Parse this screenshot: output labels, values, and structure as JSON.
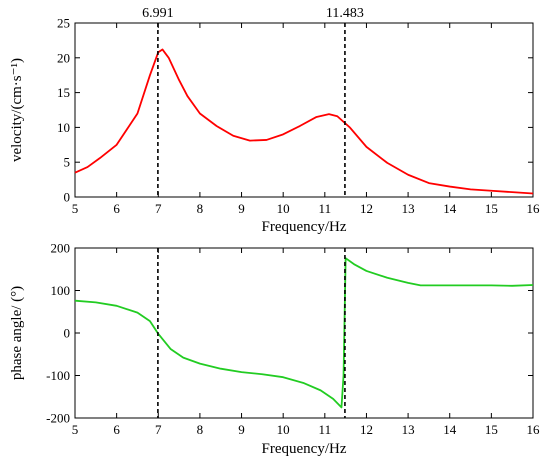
{
  "chart_data": [
    {
      "type": "line",
      "xlabel": "Frequency/Hz",
      "ylabel": "velocity/(cm·s⁻¹)",
      "xlim": [
        5,
        16
      ],
      "ylim": [
        0,
        25
      ],
      "xticks": [
        5,
        6,
        7,
        8,
        9,
        10,
        11,
        12,
        13,
        14,
        15,
        16
      ],
      "yticks": [
        0,
        5,
        10,
        15,
        20,
        25
      ],
      "grid": false,
      "marker_lines": [
        {
          "x": 6.991,
          "label": "6.991"
        },
        {
          "x": 11.483,
          "label": "11.483"
        }
      ],
      "series": [
        {
          "color": "#ff0000",
          "x": [
            5.0,
            5.3,
            5.6,
            6.0,
            6.5,
            6.8,
            7.0,
            7.1,
            7.25,
            7.5,
            7.7,
            8.0,
            8.4,
            8.8,
            9.2,
            9.6,
            10.0,
            10.4,
            10.8,
            11.1,
            11.3,
            11.6,
            12.0,
            12.5,
            13.0,
            13.5,
            14.0,
            14.5,
            15.0,
            15.5,
            16.0
          ],
          "y": [
            3.5,
            4.3,
            5.6,
            7.5,
            12.0,
            17.5,
            20.8,
            21.2,
            20.0,
            16.8,
            14.5,
            12.0,
            10.2,
            8.8,
            8.1,
            8.2,
            9.0,
            10.2,
            11.5,
            11.9,
            11.6,
            10.0,
            7.2,
            4.9,
            3.2,
            2.0,
            1.5,
            1.1,
            0.9,
            0.7,
            0.5
          ]
        }
      ]
    },
    {
      "type": "line",
      "xlabel": "Frequency/Hz",
      "ylabel": "phase angle/ (°)",
      "xlim": [
        5,
        16
      ],
      "ylim": [
        -200,
        200
      ],
      "xticks": [
        5,
        6,
        7,
        8,
        9,
        10,
        11,
        12,
        13,
        14,
        15,
        16
      ],
      "yticks": [
        -200,
        -100,
        0,
        100,
        200
      ],
      "grid": false,
      "marker_lines": [
        {
          "x": 6.991
        },
        {
          "x": 11.483
        }
      ],
      "series": [
        {
          "color": "#22cc22",
          "x": [
            5.0,
            5.5,
            6.0,
            6.5,
            6.8,
            7.0,
            7.3,
            7.6,
            8.0,
            8.5,
            9.0,
            9.5,
            10.0,
            10.5,
            10.9,
            11.2,
            11.4,
            11.45,
            11.5,
            11.7,
            12.0,
            12.5,
            13.0,
            13.3,
            14.0,
            15.0,
            15.5,
            16.0
          ],
          "y": [
            76,
            72,
            64,
            48,
            28,
            -2,
            -38,
            -58,
            -72,
            -84,
            -92,
            -97,
            -104,
            -118,
            -135,
            -155,
            -175,
            -100,
            176,
            162,
            146,
            130,
            118,
            112,
            112,
            112,
            111,
            113
          ]
        }
      ]
    }
  ]
}
